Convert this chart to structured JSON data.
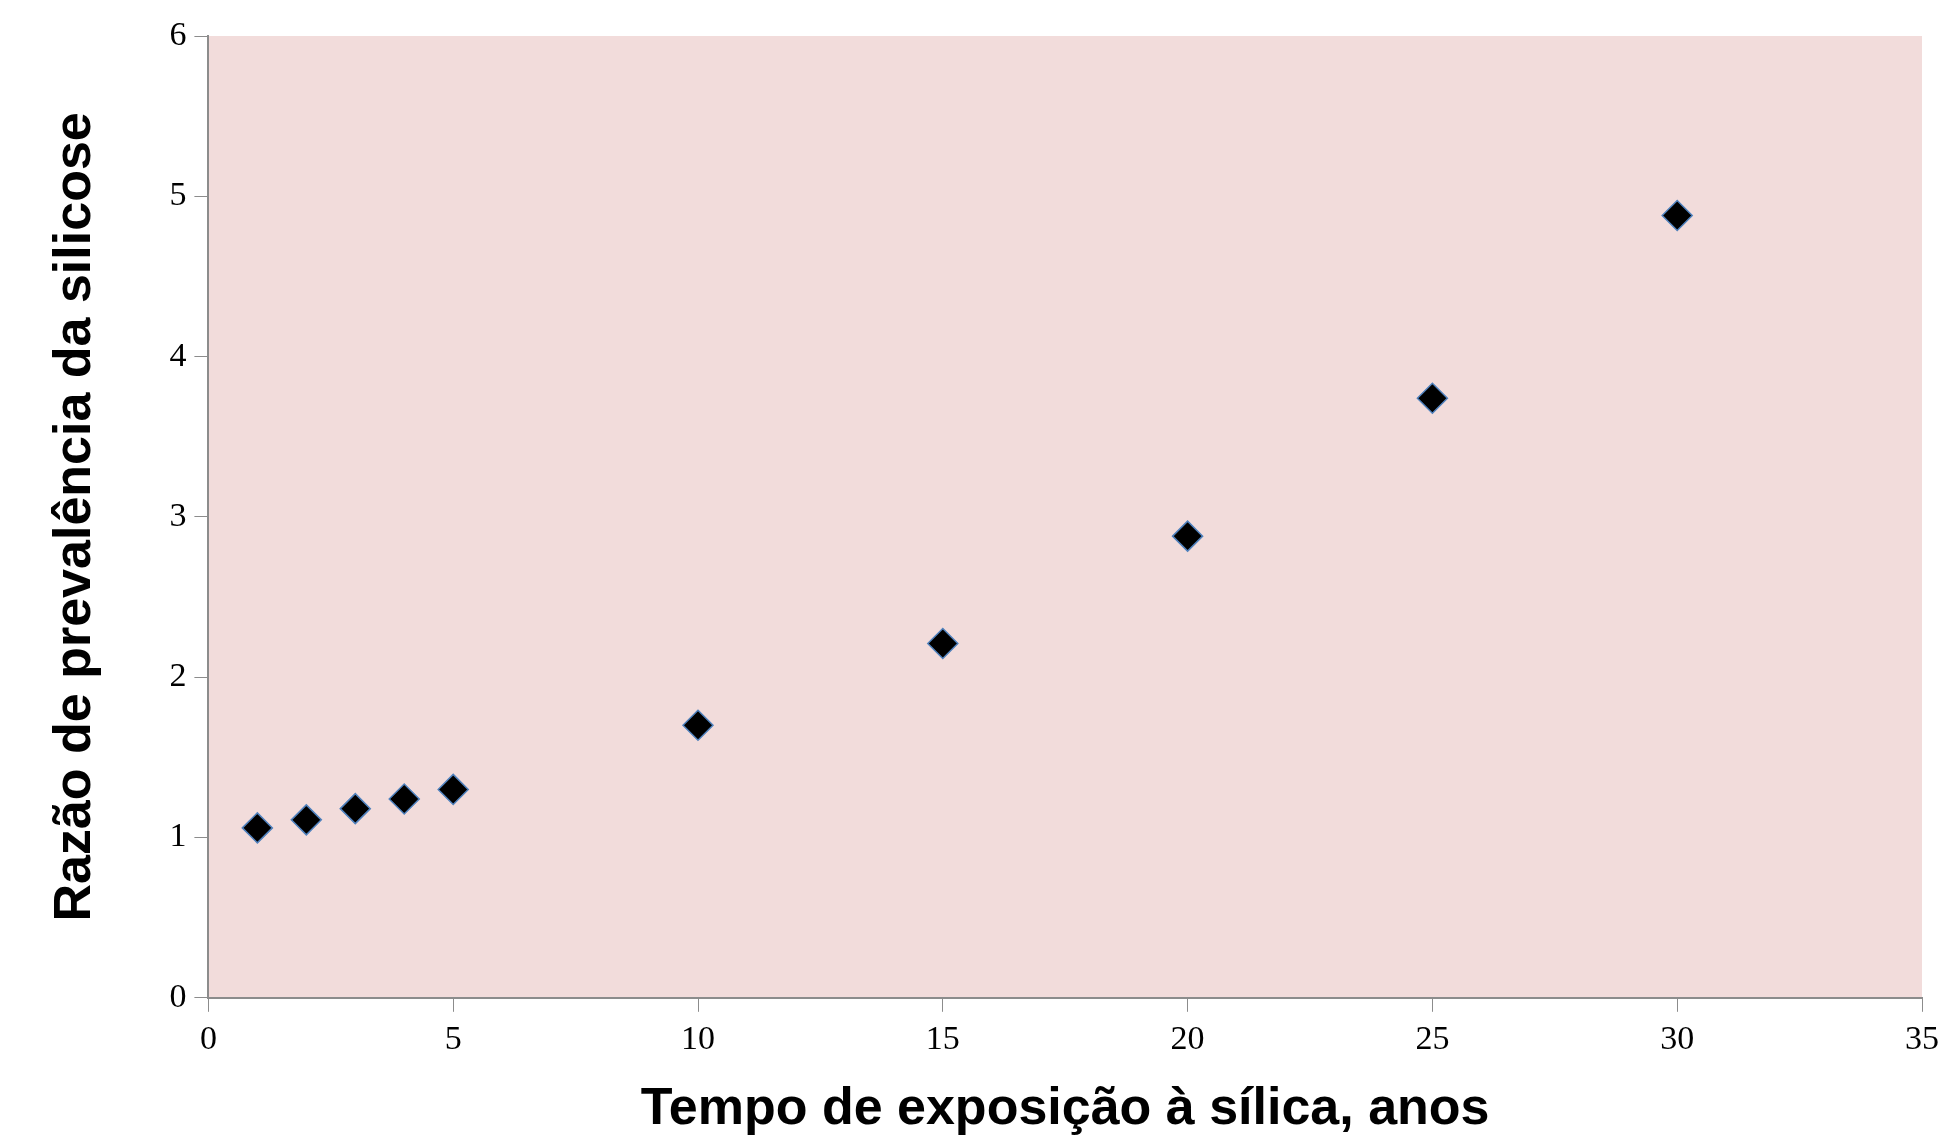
{
  "chart_data": {
    "type": "scatter",
    "xlabel": "Tempo de exposição à sílica, anos",
    "ylabel": "Razão de prevalência da silicose",
    "x": [
      1,
      2,
      3,
      4,
      5,
      10,
      15,
      20,
      25,
      30
    ],
    "series": [
      {
        "color": "#000000",
        "values": [
          1.06,
          1.11,
          1.18,
          1.24,
          1.3,
          1.7,
          2.21,
          2.88,
          3.74,
          4.88
        ]
      }
    ],
    "xlim": [
      0,
      35
    ],
    "xticks": [
      0,
      5,
      10,
      15,
      20,
      25,
      30,
      35
    ],
    "ylim": [
      0,
      6
    ],
    "yticks": [
      0,
      1,
      2,
      3,
      4,
      5,
      6
    ],
    "marker": "diamond",
    "grid": false,
    "legend": false
  }
}
